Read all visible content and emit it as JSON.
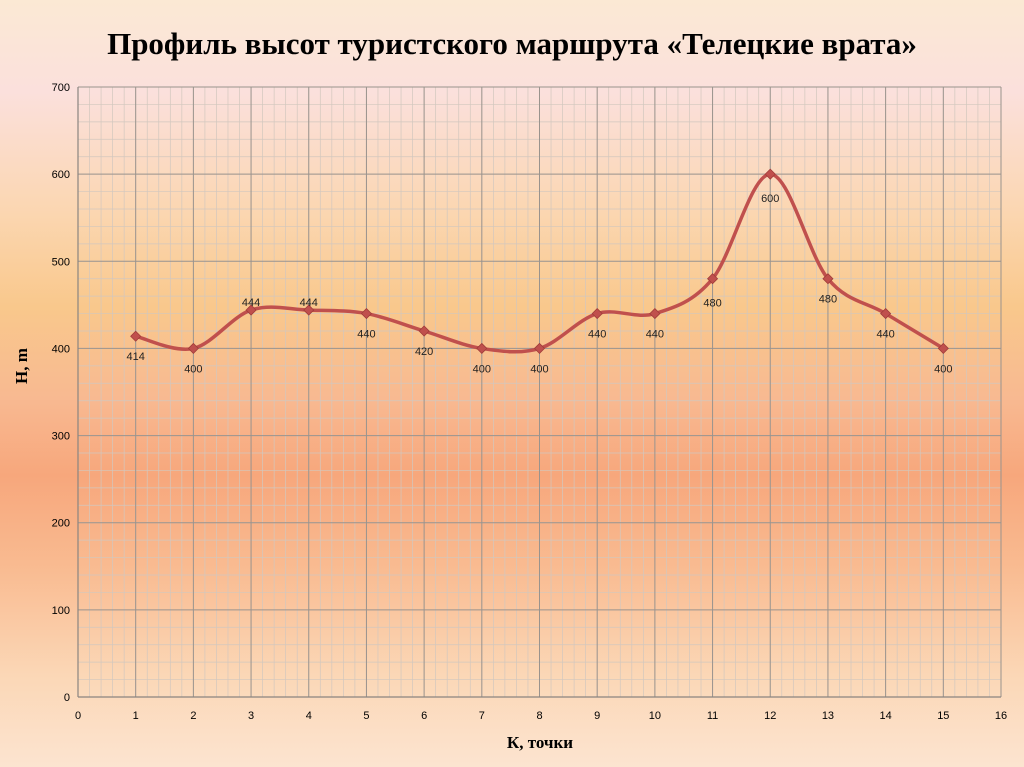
{
  "chart_data": {
    "type": "line",
    "title": "Профиль высот туристского маршрута «Телецкие врата»",
    "xlabel": "К, точки",
    "ylabel": "Н, m",
    "xlim": [
      0,
      16
    ],
    "ylim": [
      0,
      700
    ],
    "x_ticks": [
      0,
      1,
      2,
      3,
      4,
      5,
      6,
      7,
      8,
      9,
      10,
      11,
      12,
      13,
      14,
      15,
      16
    ],
    "y_ticks": [
      0,
      100,
      200,
      300,
      400,
      500,
      600,
      700
    ],
    "grid": true,
    "smoothed": true,
    "series": [
      {
        "x": [
          1,
          2,
          3,
          4,
          5,
          6,
          7,
          8,
          9,
          10,
          11,
          12,
          13,
          14,
          15
        ],
        "values": [
          414,
          400,
          444,
          444,
          440,
          420,
          400,
          400,
          440,
          440,
          480,
          600,
          480,
          440,
          400
        ],
        "labels": [
          "414",
          "400",
          "444",
          "444",
          "440",
          "420",
          "400",
          "400",
          "440",
          "440",
          "480",
          "600",
          "480",
          "440",
          "400"
        ],
        "color": "#c0504d"
      }
    ]
  }
}
